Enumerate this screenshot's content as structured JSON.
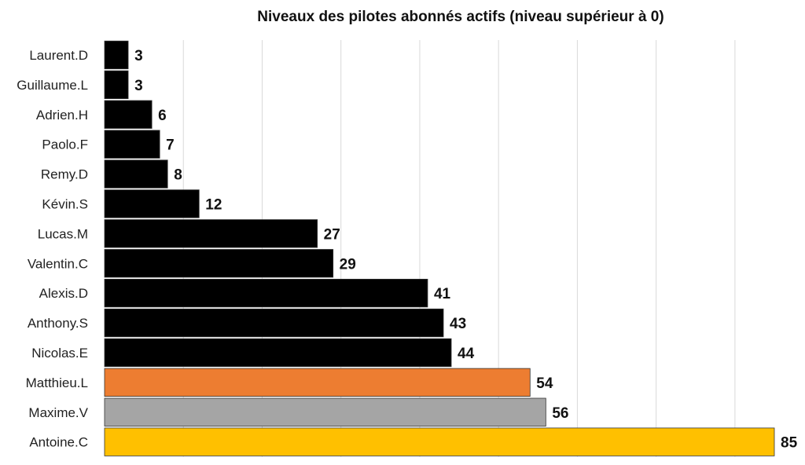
{
  "chart_data": {
    "type": "bar",
    "orientation": "horizontal",
    "title": "Niveaux des pilotes abonnés actifs (niveau supérieur à 0)",
    "xlabel": "",
    "ylabel": "",
    "xlim": [
      0,
      85
    ],
    "grid": true,
    "categories": [
      "Laurent.D",
      "Guillaume.L",
      "Adrien.H",
      "Paolo.F",
      "Remy.D",
      "Kévin.S",
      "Lucas.M",
      "Valentin.C",
      "Alexis.D",
      "Anthony.S",
      "Nicolas.E",
      "Matthieu.L",
      "Maxime.V",
      "Antoine.C"
    ],
    "values": [
      3,
      3,
      6,
      7,
      8,
      12,
      27,
      29,
      41,
      43,
      44,
      54,
      56,
      85
    ],
    "colors": [
      "#000000",
      "#000000",
      "#000000",
      "#000000",
      "#000000",
      "#000000",
      "#000000",
      "#000000",
      "#000000",
      "#000000",
      "#000000",
      "#ED7D31",
      "#A5A5A5",
      "#FFC000"
    ],
    "gridline_step": 10
  }
}
